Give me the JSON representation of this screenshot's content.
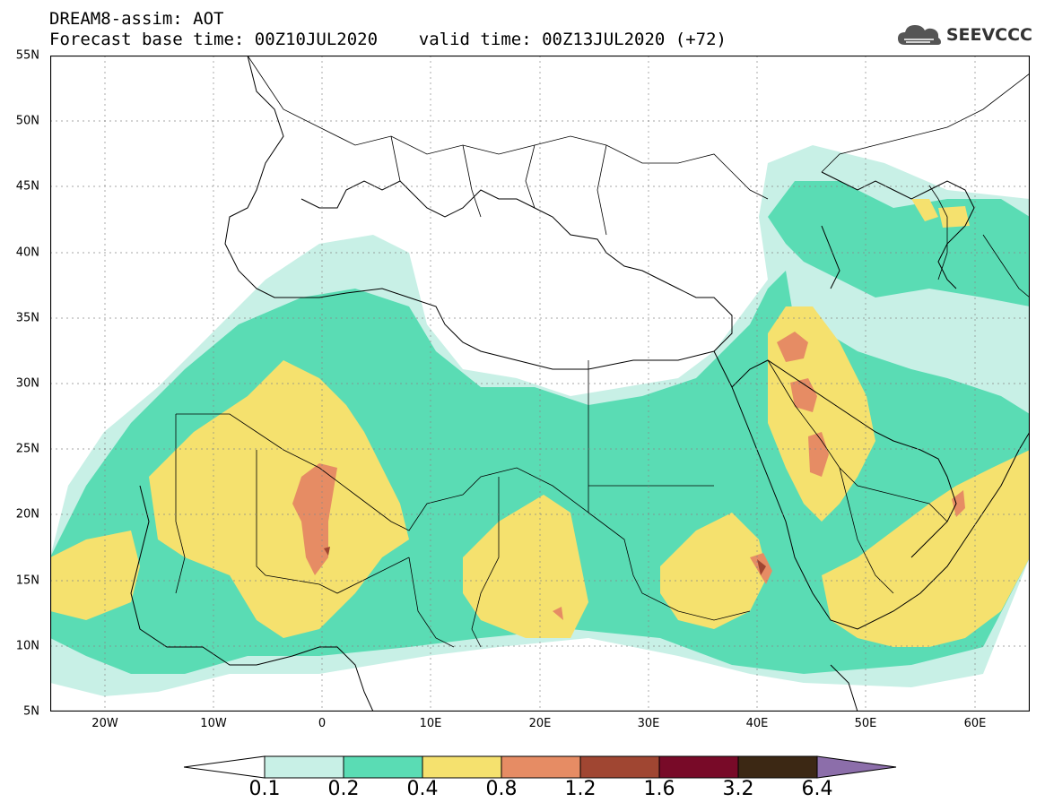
{
  "header": {
    "line1": "DREAM8-assim: AOT",
    "line2": "Forecast base time: 00Z10JUL2020    valid time: 00Z13JUL2020 (+72)"
  },
  "logo": {
    "text": "SEEVCCC",
    "icon": "cloud-icon"
  },
  "map": {
    "lat_labels": [
      "55N",
      "50N",
      "45N",
      "40N",
      "35N",
      "30N",
      "25N",
      "20N",
      "15N",
      "10N",
      "5N"
    ],
    "lon_labels": [
      "20W",
      "10W",
      "0",
      "10E",
      "20E",
      "30E",
      "40E",
      "50E",
      "60E"
    ],
    "lat_range": [
      5,
      55
    ],
    "lon_range": [
      -25,
      65
    ],
    "grid": true
  },
  "colorbar": {
    "labels": [
      "0.1",
      "0.2",
      "0.4",
      "0.8",
      "1.2",
      "1.6",
      "3.2",
      "6.4"
    ],
    "colors": [
      "#ffffff",
      "#c8f0e6",
      "#5adcb4",
      "#f5e16e",
      "#e68c64",
      "#a04632",
      "#780a28",
      "#3c2814",
      "#8c6eaa"
    ]
  }
}
